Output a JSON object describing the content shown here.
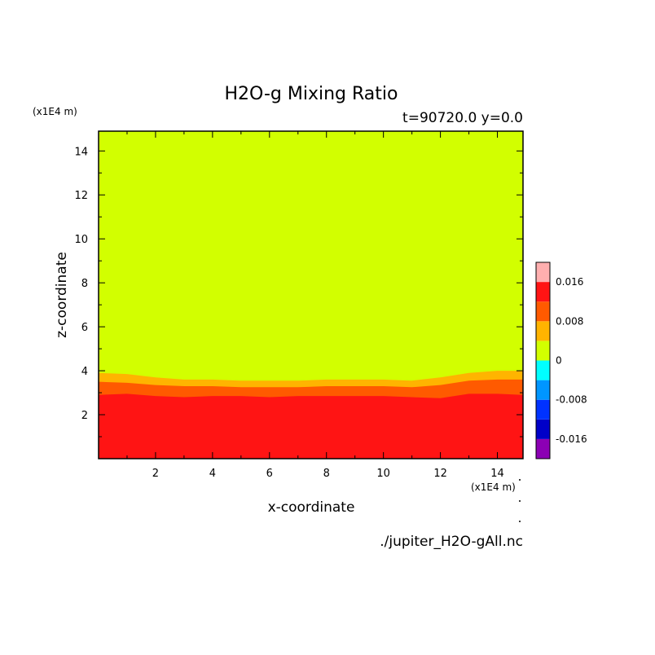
{
  "chart_data": {
    "type": "contour",
    "title": "H2O-g Mixing Ratio",
    "time_label": "t=90720.0 y=0.0",
    "xlabel": "x-coordinate",
    "ylabel": "z-coordinate",
    "x_unit": "(x1E4 m)",
    "y_unit": "(x1E4 m)",
    "source_file": "./jupiter_H2O-gAll.nc",
    "xlim": [
      0,
      14.9
    ],
    "ylim": [
      0,
      14.9
    ],
    "x_ticks": [
      2,
      4,
      6,
      8,
      10,
      12,
      14
    ],
    "y_ticks": [
      2,
      4,
      6,
      8,
      10,
      12,
      14
    ],
    "colorbar": {
      "levels": [
        -0.02,
        -0.016,
        -0.012,
        -0.008,
        -0.004,
        0,
        0.004,
        0.008,
        0.012,
        0.016,
        0.02
      ],
      "colors": [
        "#8c00b4",
        "#0000c8",
        "#0032ff",
        "#0096ff",
        "#00ffff",
        "#d2ff00",
        "#ffb400",
        "#ff5a00",
        "#ff1414",
        "#ffafaf"
      ],
      "tick_labels": [
        {
          "value": 0.016,
          "label": "0.016"
        },
        {
          "value": 0.008,
          "label": "0.008"
        },
        {
          "value": 0,
          "label": "0"
        },
        {
          "value": -0.008,
          "label": "-0.008"
        },
        {
          "value": -0.016,
          "label": "-0.016"
        }
      ]
    },
    "background_color": "#d2ff00",
    "contour_bands": [
      {
        "color": "#ffb400",
        "x": [
          0,
          1,
          2,
          3,
          4,
          5,
          6,
          7,
          8,
          9,
          10,
          11,
          12,
          13,
          14,
          14.9
        ],
        "z": [
          3.9,
          3.85,
          3.7,
          3.6,
          3.6,
          3.55,
          3.55,
          3.55,
          3.6,
          3.6,
          3.6,
          3.55,
          3.7,
          3.9,
          4.0,
          4.0
        ]
      },
      {
        "color": "#ff5a00",
        "x": [
          0,
          1,
          2,
          3,
          4,
          5,
          6,
          7,
          8,
          9,
          10,
          11,
          12,
          13,
          14,
          14.9
        ],
        "z": [
          3.5,
          3.45,
          3.35,
          3.3,
          3.3,
          3.25,
          3.25,
          3.25,
          3.3,
          3.3,
          3.3,
          3.25,
          3.35,
          3.55,
          3.6,
          3.6
        ]
      },
      {
        "color": "#ff1414",
        "x": [
          0,
          1,
          2,
          3,
          4,
          5,
          6,
          7,
          8,
          9,
          10,
          11,
          12,
          13,
          14,
          14.9
        ],
        "z": [
          2.9,
          2.95,
          2.85,
          2.8,
          2.85,
          2.85,
          2.8,
          2.85,
          2.85,
          2.85,
          2.85,
          2.8,
          2.75,
          2.95,
          2.95,
          2.9
        ]
      }
    ]
  }
}
